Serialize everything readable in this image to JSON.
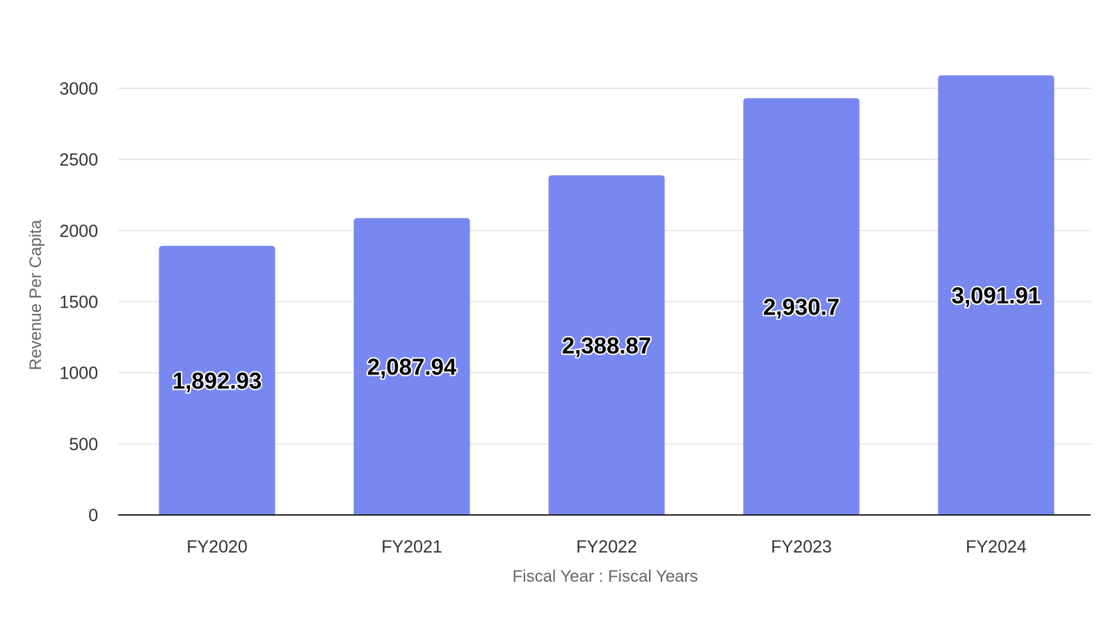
{
  "chart_data": {
    "type": "bar",
    "categories": [
      "FY2020",
      "FY2021",
      "FY2022",
      "FY2023",
      "FY2024"
    ],
    "values": [
      1892.93,
      2087.94,
      2388.87,
      2930.7,
      3091.91
    ],
    "data_labels": [
      "1,892.93",
      "2,087.94",
      "2,388.87",
      "2,930.7",
      "3,091.91"
    ],
    "title": "",
    "xlabel": "Fiscal Year : Fiscal Years",
    "ylabel": "Revenue Per Capita",
    "ylim": [
      0,
      3000
    ],
    "yticks": [
      0,
      500,
      1000,
      1500,
      2000,
      2500,
      3000
    ],
    "grid": true,
    "legend": "none",
    "colors": {
      "bar": "#7888f0",
      "grid": "#e3e3e3",
      "baseline": "#222222"
    }
  }
}
